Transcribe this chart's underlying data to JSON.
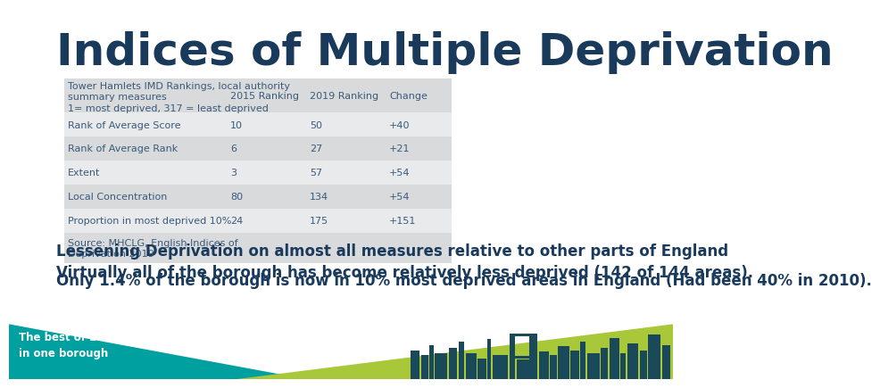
{
  "title": "Indices of Multiple Deprivation",
  "title_color": "#1a3a5c",
  "table_header": [
    "Tower Hamlets IMD Rankings, local authority\nsummary measures\n1= most deprived, 317 = least deprived",
    "2015 Ranking",
    "2019 Ranking",
    "Change"
  ],
  "table_rows": [
    [
      "Rank of Average Score",
      "10",
      "50",
      "+40"
    ],
    [
      "Rank of Average Rank",
      "6",
      "27",
      "+21"
    ],
    [
      "Extent",
      "3",
      "57",
      "+54"
    ],
    [
      "Local Concentration",
      "80",
      "134",
      "+54"
    ],
    [
      "Proportion in most deprived 10%",
      "24",
      "175",
      "+151"
    ],
    [
      "Source: MHCLG, English Indices of\nDeprivation 2019",
      "",
      "",
      ""
    ]
  ],
  "text_line1": "Lessening Deprivation on almost all measures relative to other parts of England",
  "text_line2": "Virtually all of the borough has become relatively less deprived (142 of 144 areas).",
  "text_line3": "Only 1.4% of the borough is now in 10% most deprived areas in England (Had been 40% in 2010).",
  "text_color": "#1a3a5c",
  "table_bg_dark": "#d8dadc",
  "table_bg_light": "#e8eaec",
  "table_text_color": "#3a5a7a",
  "footer_teal": "#00a0a0",
  "footer_green": "#a8c83a",
  "footer_skyline": "#1a4a5a",
  "footer_text": "The best of London\nin one borough",
  "footer_text_color": "#ffffff",
  "title_fontsize": 36,
  "body_fontsize": 12,
  "table_fontsize": 8
}
